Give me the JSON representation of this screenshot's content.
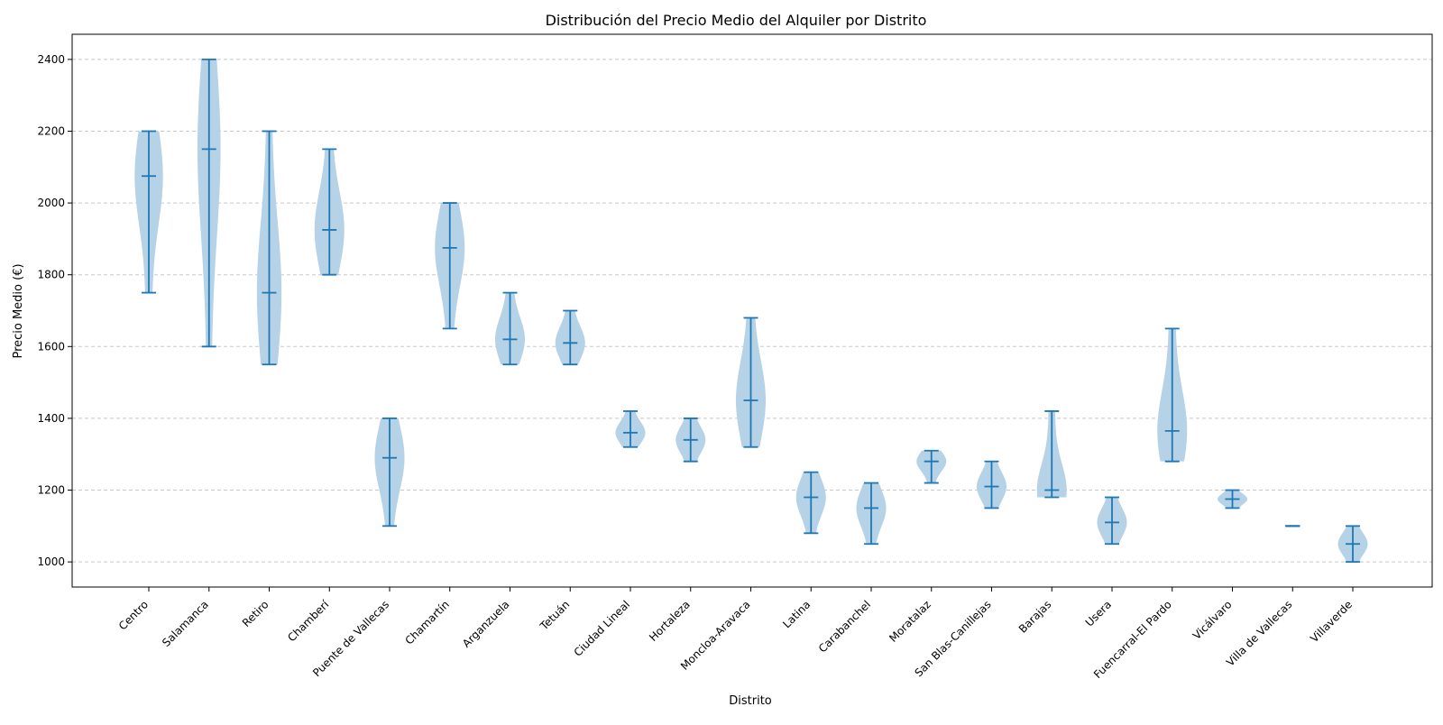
{
  "chart_data": {
    "type": "violin",
    "title": "Distribución del Precio Medio del Alquiler por Distrito",
    "xlabel": "Distrito",
    "ylabel": "Precio Medio (€)",
    "ylim": [
      930,
      2470
    ],
    "yticks": [
      1000,
      1200,
      1400,
      1600,
      1800,
      2000,
      2200,
      2400
    ],
    "grid": "y-dashed",
    "colors": {
      "body": "#b5d2e6",
      "line": "#1f77b4",
      "grid": "#c8c8c8"
    },
    "categories": [
      "Centro",
      "Salamanca",
      "Retiro",
      "Chamberí",
      "Puente de Vallecas",
      "Chamartín",
      "Arganzuela",
      "Tetuán",
      "Ciudad Lineal",
      "Hortaleza",
      "Moncloa-Aravaca",
      "Latina",
      "Carabanchel",
      "Moratalaz",
      "San Blas-Canillejas",
      "Barajas",
      "Usera",
      "Fuencarral-El Pardo",
      "Vicálvaro",
      "Villa de Vallecas",
      "Villaverde"
    ],
    "series": [
      {
        "category": "Centro",
        "min": 1750,
        "median": 2075,
        "max": 2200
      },
      {
        "category": "Salamanca",
        "min": 1600,
        "median": 2150,
        "max": 2400
      },
      {
        "category": "Retiro",
        "min": 1550,
        "median": 1750,
        "max": 2200
      },
      {
        "category": "Chamberí",
        "min": 1800,
        "median": 1925,
        "max": 2150
      },
      {
        "category": "Puente de Vallecas",
        "min": 1100,
        "median": 1290,
        "max": 1400
      },
      {
        "category": "Chamartín",
        "min": 1650,
        "median": 1875,
        "max": 2000
      },
      {
        "category": "Arganzuela",
        "min": 1550,
        "median": 1620,
        "max": 1750
      },
      {
        "category": "Tetuán",
        "min": 1550,
        "median": 1610,
        "max": 1700
      },
      {
        "category": "Ciudad Lineal",
        "min": 1320,
        "median": 1360,
        "max": 1420
      },
      {
        "category": "Hortaleza",
        "min": 1280,
        "median": 1340,
        "max": 1400
      },
      {
        "category": "Moncloa-Aravaca",
        "min": 1320,
        "median": 1450,
        "max": 1680
      },
      {
        "category": "Latina",
        "min": 1080,
        "median": 1180,
        "max": 1250
      },
      {
        "category": "Carabanchel",
        "min": 1050,
        "median": 1150,
        "max": 1220
      },
      {
        "category": "Moratalaz",
        "min": 1220,
        "median": 1280,
        "max": 1310
      },
      {
        "category": "San Blas-Canillejas",
        "min": 1150,
        "median": 1210,
        "max": 1280
      },
      {
        "category": "Barajas",
        "min": 1180,
        "median": 1200,
        "max": 1420
      },
      {
        "category": "Usera",
        "min": 1050,
        "median": 1110,
        "max": 1180
      },
      {
        "category": "Fuencarral-El Pardo",
        "min": 1280,
        "median": 1365,
        "max": 1650
      },
      {
        "category": "Vicálvaro",
        "min": 1150,
        "median": 1175,
        "max": 1200
      },
      {
        "category": "Villa de Vallecas",
        "min": 1100,
        "median": 1100,
        "max": 1100
      },
      {
        "category": "Villaverde",
        "min": 1000,
        "median": 1050,
        "max": 1100
      }
    ]
  }
}
